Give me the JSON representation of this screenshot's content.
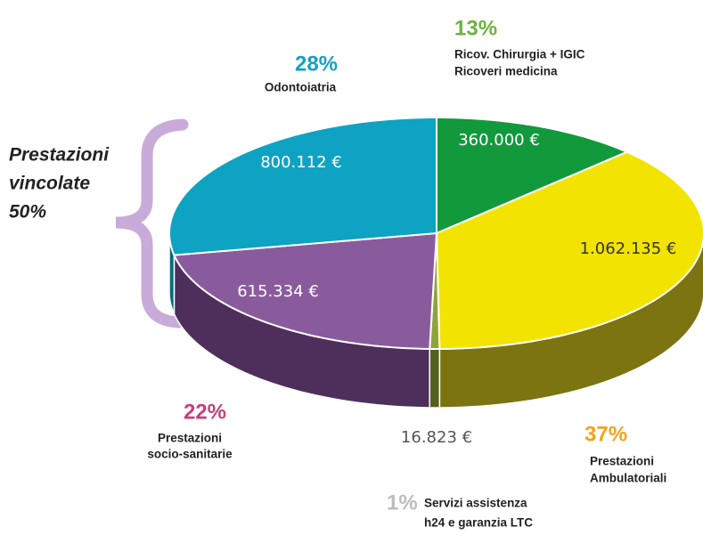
{
  "chart_data": {
    "type": "pie",
    "categories": [
      [
        "Ricov. Chirurgia + IGIC",
        "Ricoveri medicina"
      ],
      [
        "Prestazioni",
        "Ambulatoriali"
      ],
      [
        "Servizi assistenza",
        "h24 e garanzia LTC"
      ],
      [
        "Prestazioni",
        "socio-sanitarie"
      ],
      [
        "Odontoiatria"
      ]
    ],
    "values": [
      13,
      37,
      1,
      22,
      28
    ],
    "value_labels": [
      "13%",
      "37%",
      "1%",
      "22%",
      "28%"
    ],
    "amounts": [
      360000,
      1062135,
      16823,
      615334,
      800112
    ],
    "amount_labels": [
      "360.000 €",
      "1.062.135 €",
      "16.823 €",
      "615.334 €",
      "800.112 €"
    ],
    "colors": [
      "#12993c",
      "#f3e300",
      "#8fa33c",
      "#8a5b9c",
      "#0ea3c2"
    ],
    "side_colors": [
      "#0a6a28",
      "#7b7410",
      "#556020",
      "#4e2f5c",
      "#086a80"
    ],
    "label_colors": [
      "#6cb33f",
      "#f4a31b",
      "#bdbdbd",
      "#c2427c",
      "#15a1bf"
    ],
    "annotation": [
      "Prestazioni",
      "vincolate",
      "50%"
    ]
  }
}
